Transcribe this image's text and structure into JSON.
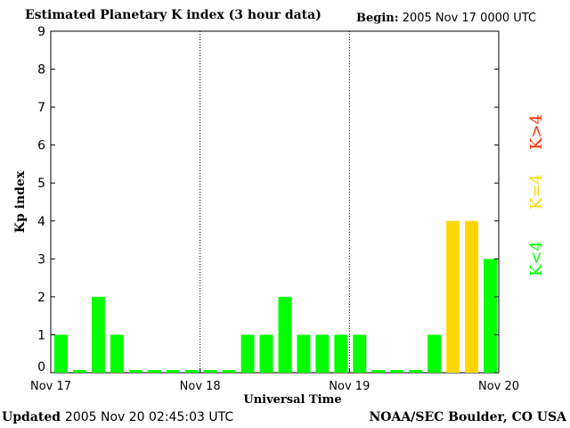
{
  "header": {
    "title": "Estimated Planetary K index (3 hour data)",
    "begin_label": "Begin:",
    "begin_value": "2005 Nov 17 0000 UTC"
  },
  "footer": {
    "updated_label": "Updated",
    "updated_value": "2005 Nov 20 02:45:03 UTC",
    "source": "NOAA/SEC Boulder, CO USA"
  },
  "legend": {
    "high": "K>4",
    "equal": "K=4",
    "low": "K<4"
  },
  "colors": {
    "low": "#00ff00",
    "equal": "#ffd700",
    "high": "#ff2a00",
    "day_divider": "#000000"
  },
  "chart_data": {
    "type": "bar",
    "title": "Estimated Planetary K index (3 hour data)",
    "xlabel": "Universal Time",
    "ylabel": "Kp index",
    "ylim": [
      0,
      9
    ],
    "yticks": [
      0,
      1,
      2,
      3,
      4,
      5,
      6,
      7,
      8,
      9
    ],
    "xticks": [
      "Nov 17",
      "Nov 18",
      "Nov 19",
      "Nov 20"
    ],
    "bars_per_day": 8,
    "series": [
      {
        "values": [
          1,
          0,
          2,
          1,
          0,
          0,
          0,
          0,
          0,
          0,
          1,
          1,
          2,
          1,
          1,
          1,
          1,
          0,
          0,
          0,
          1,
          4,
          4,
          3
        ]
      }
    ],
    "grid": false
  }
}
